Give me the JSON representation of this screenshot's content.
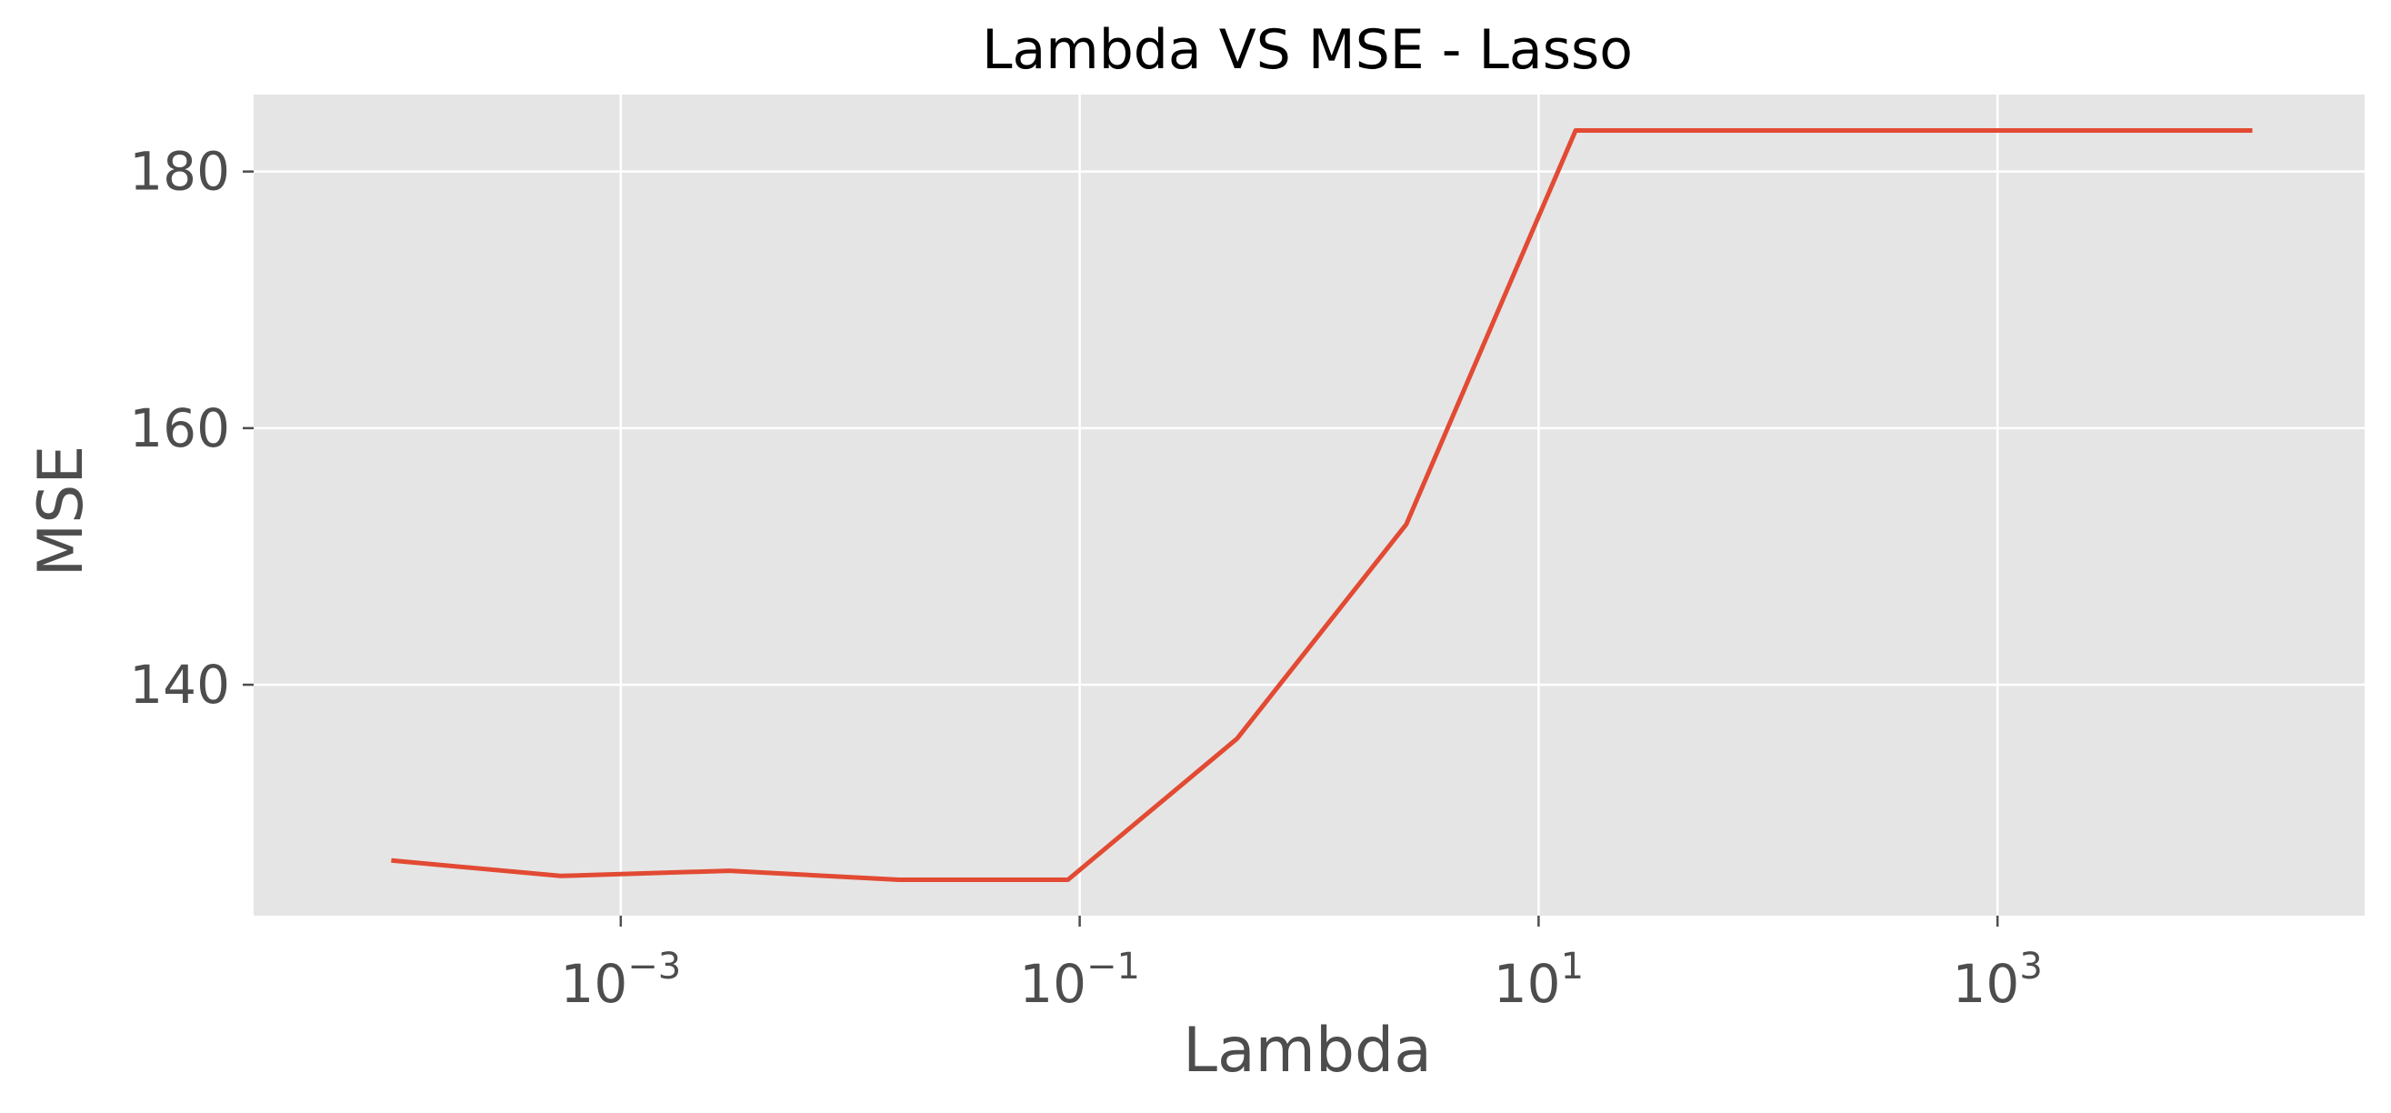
{
  "chart_data": {
    "type": "line",
    "title": "Lambda VS MSE - Lasso",
    "xlabel": "Lambda",
    "ylabel": "MSE",
    "xscale": "log",
    "x_log10_lim": [
      -4.6,
      4.6
    ],
    "ylim": [
      122,
      186
    ],
    "grid": true,
    "colors": {
      "background": "#e5e5e5",
      "grid": "#ffffff",
      "line": "#e24a33",
      "ticks": "#4d4d4d"
    },
    "xticks": [
      {
        "base": "10",
        "exp": "−3",
        "log10": -3
      },
      {
        "base": "10",
        "exp": "−1",
        "log10": -1
      },
      {
        "base": "10",
        "exp": "1",
        "log10": 1
      },
      {
        "base": "10",
        "exp": "3",
        "log10": 3
      }
    ],
    "yticks": [
      {
        "label": "140",
        "value": 140
      },
      {
        "label": "160",
        "value": 160
      },
      {
        "label": "180",
        "value": 180
      }
    ],
    "series": [
      {
        "x": [
          0.0001,
          0.000546,
          0.00298,
          0.0163,
          0.0889,
          0.485,
          2.65,
          14.5,
          79.1,
          432,
          2360,
          12900
        ],
        "y": [
          126.3,
          125.1,
          125.5,
          124.8,
          124.8,
          135.8,
          152.5,
          183.2,
          183.2,
          183.2,
          183.2,
          183.2
        ]
      }
    ]
  }
}
